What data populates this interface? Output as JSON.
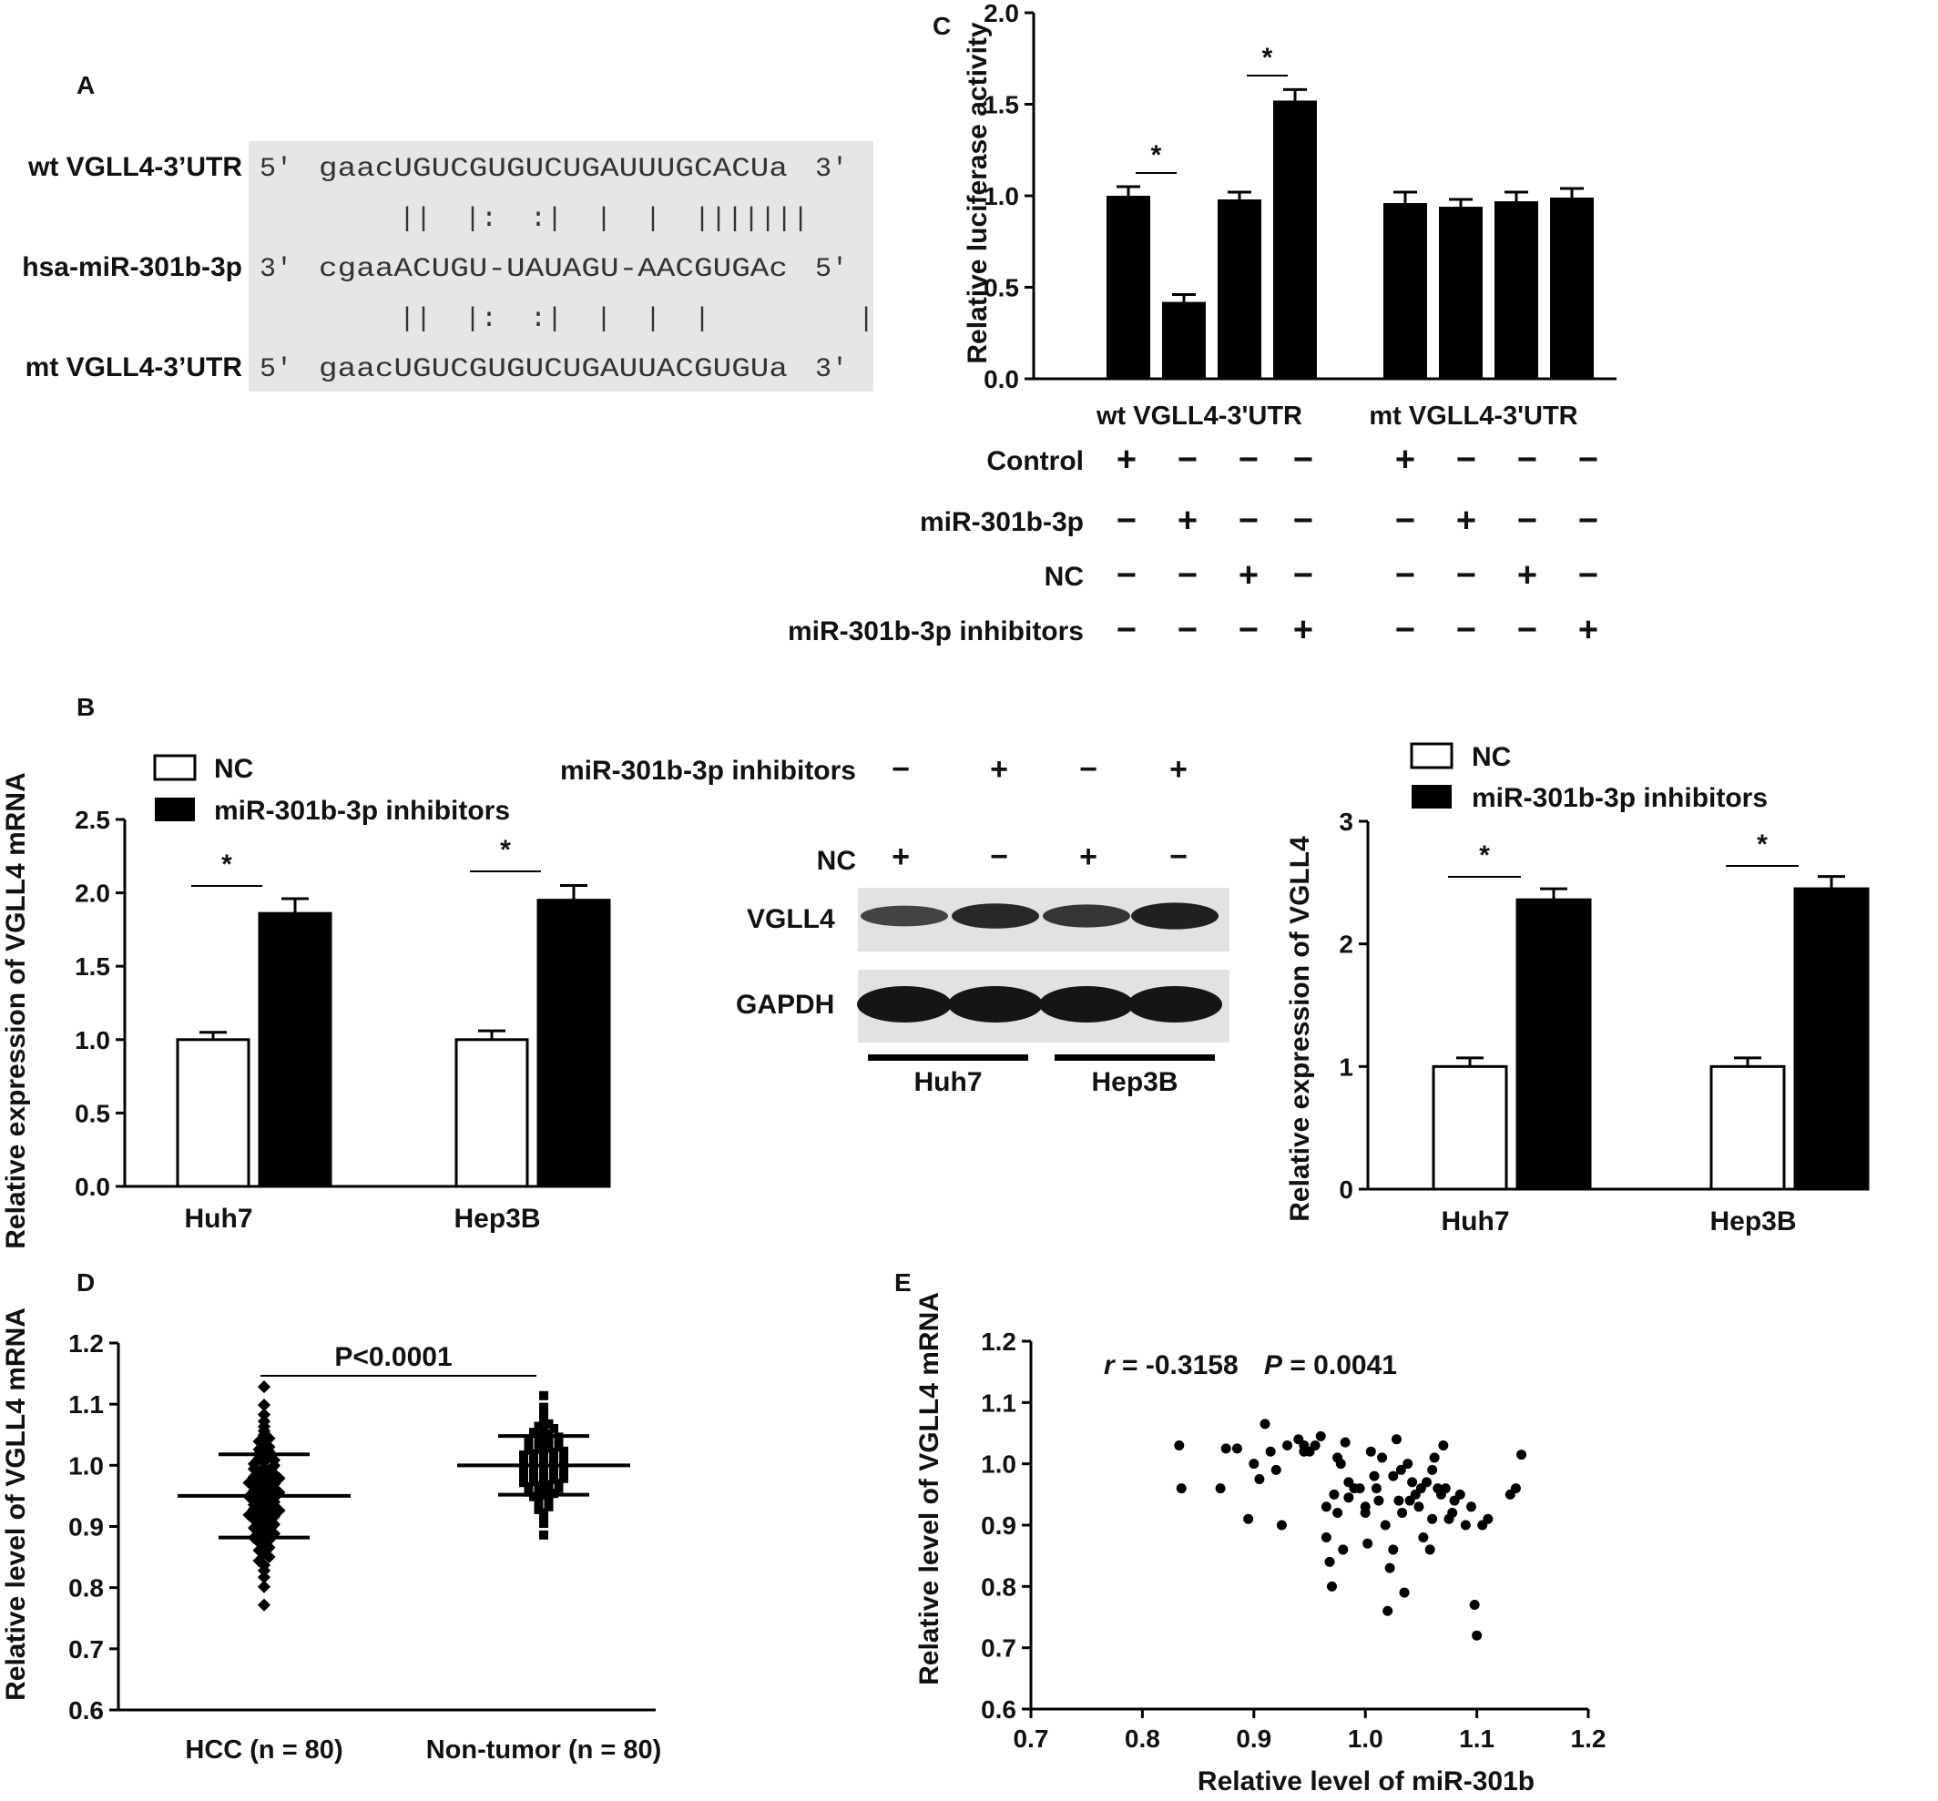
{
  "figure": {
    "panel_letters": [
      "A",
      "B",
      "C",
      "D",
      "E"
    ]
  },
  "panel_a": {
    "rows": [
      {
        "name": "wt VGLL4-3’UTR",
        "p5": "5'",
        "seq": "gaacUGUCGUGUCUGAUUUGCACUa",
        "p3": "3'"
      },
      {
        "name": "hsa-miR-301b-3p",
        "p5": "3'",
        "seq": "cgaaACUGU-UAUAGU-AACGUGAc",
        "p3": "5'"
      },
      {
        "name": "mt VGLL4-3’UTR",
        "p5": "5'",
        "seq": "gaacUGUCGUGUCUGAUUACGUGUa",
        "p3": "3'"
      }
    ],
    "pairing_1": "||  |:  :|  |  |  |||||||",
    "pairing_2": "||  |:  :|  |  |  |         |"
  },
  "chart_data": [
    {
      "id": "C",
      "type": "bar",
      "ylabel": "Relative luciferase activity",
      "ylim": [
        0,
        2.0
      ],
      "yticks": [
        "0.0",
        "0.5",
        "1.0",
        "1.5",
        "2.0"
      ],
      "groups": [
        "wt VGLL4-3'UTR",
        "mt VGLL4-3'UTR"
      ],
      "values": [
        1.0,
        0.42,
        0.98,
        1.52,
        0.96,
        0.94,
        0.97,
        0.99
      ],
      "errors": [
        0.05,
        0.04,
        0.04,
        0.06,
        0.06,
        0.04,
        0.05,
        0.05
      ],
      "significance": "*",
      "treatment_table": {
        "rows": [
          "Control",
          "miR-301b-3p",
          "NC",
          "miR-301b-3p inhibitors"
        ],
        "signs": [
          [
            "+",
            "−",
            "−",
            "−",
            "+",
            "−",
            "−",
            "−"
          ],
          [
            "−",
            "+",
            "−",
            "−",
            "−",
            "+",
            "−",
            "−"
          ],
          [
            "−",
            "−",
            "+",
            "−",
            "−",
            "−",
            "+",
            "−"
          ],
          [
            "−",
            "−",
            "−",
            "+",
            "−",
            "−",
            "−",
            "+"
          ]
        ]
      }
    },
    {
      "id": "B-left",
      "type": "bar",
      "ylabel": "Relative expression of VGLL4 mRNA",
      "ylim": [
        0,
        2.5
      ],
      "yticks": [
        "0.0",
        "0.5",
        "1.0",
        "1.5",
        "2.0",
        "2.5"
      ],
      "categories": [
        "Huh7",
        "Hep3B"
      ],
      "series": [
        {
          "name": "NC",
          "values": [
            1.0,
            1.0
          ],
          "errors": [
            0.05,
            0.06
          ]
        },
        {
          "name": "miR-301b-3p inhibitors",
          "values": [
            1.86,
            1.95
          ],
          "errors": [
            0.1,
            0.1
          ]
        }
      ],
      "significance": "*"
    },
    {
      "id": "B-right",
      "type": "bar",
      "ylabel": "Relative expression of VGLL4",
      "ylim": [
        0,
        3
      ],
      "yticks": [
        "0",
        "1",
        "2",
        "3"
      ],
      "categories": [
        "Huh7",
        "Hep3B"
      ],
      "series": [
        {
          "name": "NC",
          "values": [
            1.0,
            1.0
          ],
          "errors": [
            0.07,
            0.07
          ]
        },
        {
          "name": "miR-301b-3p inhibitors",
          "values": [
            2.36,
            2.45
          ],
          "errors": [
            0.09,
            0.1
          ]
        }
      ],
      "significance": "*"
    },
    {
      "id": "D",
      "type": "scatter",
      "ylabel": "Relative level of VGLL4 mRNA",
      "ylim": [
        0.6,
        1.2
      ],
      "yticks": [
        "0.6",
        "0.7",
        "0.8",
        "0.9",
        "1.0",
        "1.1",
        "1.2"
      ],
      "categories": [
        "HCC (n = 80)",
        "Non-tumor (n = 80)"
      ],
      "means": [
        0.95,
        1.0
      ],
      "sd": [
        0.068,
        0.048
      ],
      "n": [
        80,
        80
      ],
      "annotation": "P<0.0001"
    },
    {
      "id": "E",
      "type": "scatter",
      "xlabel": "Relative level of miR-301b",
      "ylabel": "Relative level of VGLL4 mRNA",
      "xlim": [
        0.7,
        1.2
      ],
      "ylim": [
        0.6,
        1.2
      ],
      "xticks": [
        "0.7",
        "0.8",
        "0.9",
        "1.0",
        "1.1",
        "1.2"
      ],
      "yticks": [
        "0.6",
        "0.7",
        "0.8",
        "0.9",
        "1.0",
        "1.1",
        "1.2"
      ],
      "annotation_r": "r",
      "annotation_r_value": " = -0.3158",
      "annotation_p": "P",
      "annotation_p_value": " = 0.0041",
      "points": [
        [
          0.833,
          1.03
        ],
        [
          0.835,
          0.96
        ],
        [
          0.87,
          0.96
        ],
        [
          0.875,
          1.025
        ],
        [
          0.885,
          1.025
        ],
        [
          0.895,
          0.91
        ],
        [
          0.9,
          1.0
        ],
        [
          0.905,
          0.975
        ],
        [
          0.91,
          1.065
        ],
        [
          0.915,
          1.02
        ],
        [
          0.92,
          0.99
        ],
        [
          0.925,
          0.9
        ],
        [
          0.93,
          1.03
        ],
        [
          0.94,
          1.04
        ],
        [
          0.945,
          1.02
        ],
        [
          0.95,
          1.02
        ],
        [
          0.955,
          1.03
        ],
        [
          0.96,
          1.045
        ],
        [
          0.965,
          0.93
        ],
        [
          0.965,
          0.88
        ],
        [
          0.968,
          0.84
        ],
        [
          0.97,
          0.8
        ],
        [
          0.972,
          0.95
        ],
        [
          0.975,
          0.92
        ],
        [
          0.978,
          1.0
        ],
        [
          0.98,
          0.86
        ],
        [
          0.982,
          1.035
        ],
        [
          0.985,
          0.945
        ],
        [
          0.99,
          0.96
        ],
        [
          0.995,
          0.96
        ],
        [
          1.0,
          0.93
        ],
        [
          1.0,
          0.92
        ],
        [
          1.002,
          0.87
        ],
        [
          1.005,
          1.02
        ],
        [
          1.008,
          0.98
        ],
        [
          1.01,
          0.96
        ],
        [
          1.012,
          0.94
        ],
        [
          1.015,
          1.01
        ],
        [
          1.018,
          0.9
        ],
        [
          1.02,
          0.76
        ],
        [
          1.022,
          0.83
        ],
        [
          1.025,
          0.98
        ],
        [
          1.025,
          0.86
        ],
        [
          1.028,
          1.04
        ],
        [
          1.03,
          0.94
        ],
        [
          1.033,
          0.92
        ],
        [
          1.035,
          0.79
        ],
        [
          1.038,
          1.0
        ],
        [
          1.04,
          0.94
        ],
        [
          1.042,
          0.97
        ],
        [
          1.045,
          0.95
        ],
        [
          1.048,
          0.93
        ],
        [
          1.05,
          0.96
        ],
        [
          1.052,
          0.88
        ],
        [
          1.055,
          0.97
        ],
        [
          1.058,
          0.86
        ],
        [
          1.06,
          0.91
        ],
        [
          1.062,
          1.01
        ],
        [
          1.065,
          0.96
        ],
        [
          1.068,
          0.95
        ],
        [
          1.07,
          1.03
        ],
        [
          1.075,
          0.91
        ],
        [
          1.078,
          0.92
        ],
        [
          1.08,
          0.94
        ],
        [
          1.085,
          0.95
        ],
        [
          1.09,
          0.9
        ],
        [
          1.095,
          0.93
        ],
        [
          1.098,
          0.77
        ],
        [
          1.1,
          0.72
        ],
        [
          1.105,
          0.9
        ],
        [
          1.11,
          0.91
        ],
        [
          1.13,
          0.95
        ],
        [
          1.135,
          0.96
        ],
        [
          1.14,
          1.015
        ],
        [
          0.945,
          1.03
        ],
        [
          0.985,
          0.97
        ],
        [
          1.06,
          0.99
        ],
        [
          0.975,
          1.01
        ],
        [
          1.032,
          0.99
        ],
        [
          1.072,
          0.96
        ]
      ]
    }
  ],
  "western_blot": {
    "header_rows": [
      "miR-301b-3p inhibitors",
      "NC"
    ],
    "header_signs": [
      [
        "−",
        "+",
        "−",
        "+"
      ],
      [
        "+",
        "−",
        "+",
        "−"
      ]
    ],
    "bands": [
      "VGLL4",
      "GAPDH"
    ],
    "band_intensity": {
      "VGLL4": [
        0.55,
        0.85,
        0.7,
        0.95
      ],
      "GAPDH": [
        1,
        1,
        1,
        1
      ]
    },
    "cell_lines": [
      "Huh7",
      "Hep3B"
    ]
  },
  "colors": {
    "bar_fill": "#000000",
    "nc_fill": "#ffffff",
    "blot_bg": "#e2e2e2",
    "seq_box": "#e6e6e6"
  }
}
